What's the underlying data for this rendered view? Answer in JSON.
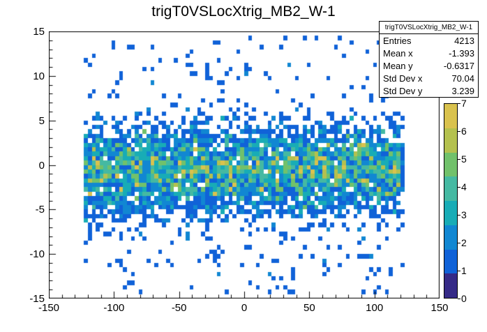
{
  "title": "trigT0VSLocXtrig_MB2_W-1",
  "stats": {
    "header": "trigT0VSLocXtrig_MB2_W-1",
    "rows": [
      {
        "label": "Entries",
        "value": "4213"
      },
      {
        "label": "Mean x",
        "value": "-1.393"
      },
      {
        "label": "Mean y",
        "value": "-0.6317"
      },
      {
        "label": "Std Dev x",
        "value": "70.04"
      },
      {
        "label": "Std Dev y",
        "value": "3.239"
      }
    ]
  },
  "chart_data": {
    "type": "heatmap",
    "title": "trigT0VSLocXtrig_MB2_W-1",
    "xlabel": "",
    "ylabel": "",
    "xlim": [
      -150,
      150
    ],
    "ylim": [
      -15,
      15
    ],
    "zlim": [
      0,
      7
    ],
    "x_ticks": [
      -150,
      -100,
      -50,
      0,
      50,
      100,
      150
    ],
    "y_ticks": [
      -15,
      -10,
      -5,
      0,
      5,
      10,
      15
    ],
    "z_ticks": [
      0,
      1,
      2,
      3,
      4,
      5,
      6,
      7
    ],
    "x_minor_step": 10,
    "y_minor_step": 1,
    "bins": {
      "nx": 100,
      "ny": 60
    },
    "entries": 4213,
    "stats": {
      "mean_x": -1.393,
      "mean_y": -0.6317,
      "std_dev_x": 70.04,
      "std_dev_y": 3.239
    },
    "x_distribution": {
      "type": "uniform",
      "min": -123,
      "max": 121
    },
    "y_distribution": {
      "type": "gaussian_with_outliers",
      "mean": -0.6317,
      "sigma_core": 2.6,
      "outlier_fraction": 0.08,
      "outlier_range": [
        -14.5,
        14.5
      ]
    },
    "seed": 20571,
    "grid": false,
    "legend_position": "right-colorbar",
    "palette": [
      "#352a87",
      "#1062d8",
      "#1187d2",
      "#18acb6",
      "#45b9a2",
      "#71c16b",
      "#b4c14f",
      "#d9c24e"
    ],
    "frame_color": "#000000",
    "background_color": "#ffffff"
  }
}
